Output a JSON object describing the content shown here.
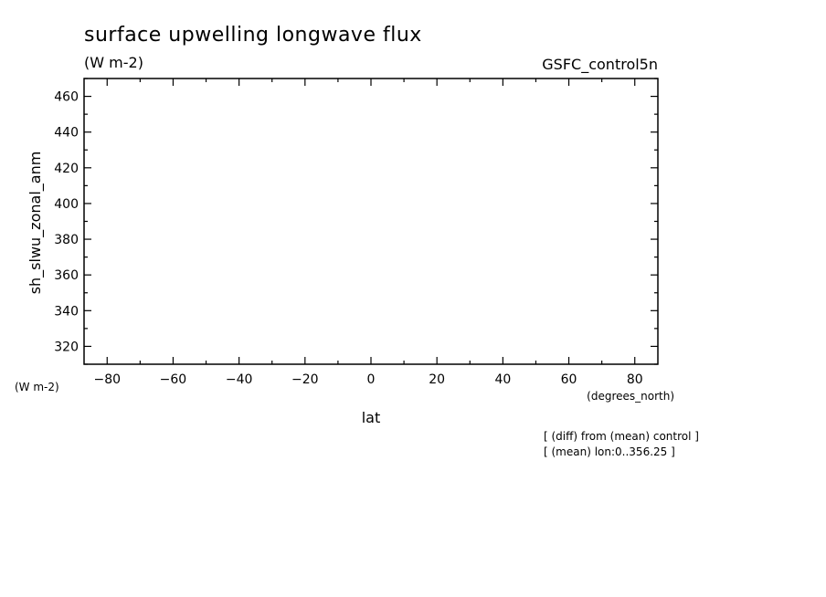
{
  "chart_data": {
    "type": "line",
    "title": "surface upwelling longwave flux",
    "units": "(W m-2)",
    "dataset_label": "GSFC_control5n",
    "ylabel": "sh_slwu_zonal_anm",
    "ylabel_units": "(W m-2)",
    "xlabel": "lat",
    "xlabel_units": "(degrees_north)",
    "xlim": [
      -87,
      87
    ],
    "ylim": [
      310,
      470
    ],
    "x_ticks": [
      -80,
      -60,
      -40,
      -20,
      0,
      20,
      40,
      60,
      80
    ],
    "x_minor_step": 10,
    "y_ticks": [
      320,
      340,
      360,
      380,
      400,
      420,
      440,
      460
    ],
    "y_minor_step": 10,
    "grid": false,
    "series": [],
    "notes": [
      "[ (diff) from (mean) control ]",
      "[ (mean) lon:0..356.25 ]"
    ]
  }
}
